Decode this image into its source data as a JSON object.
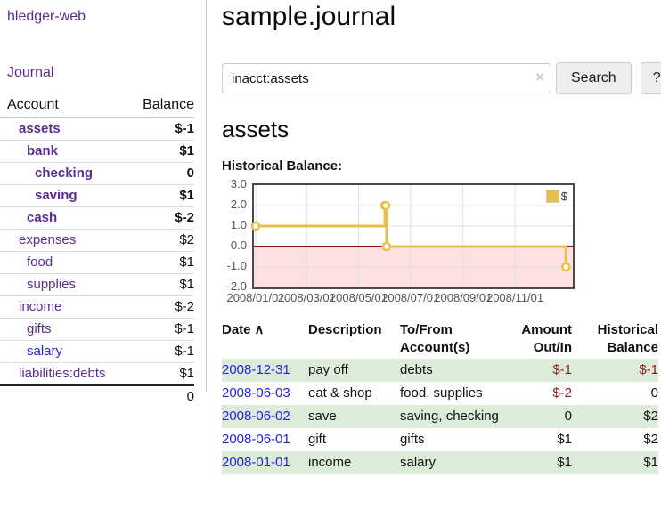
{
  "app": {
    "brand": "hledger-web"
  },
  "sidebar": {
    "journal_link": "Journal",
    "accounts_table": {
      "headers": {
        "account": "Account",
        "balance": "Balance"
      },
      "rows": [
        {
          "name": "assets",
          "depth": 1,
          "balance": "$-1",
          "highlighted": true,
          "balance_tone": "neg-strong",
          "link_color": "purple"
        },
        {
          "name": "bank",
          "depth": 2,
          "balance": "$1",
          "highlighted": true,
          "balance_tone": "normal",
          "link_color": "purple"
        },
        {
          "name": "checking",
          "depth": 3,
          "balance": "0",
          "highlighted": true,
          "balance_tone": "normal",
          "link_color": "purple"
        },
        {
          "name": "saving",
          "depth": 3,
          "balance": "$1",
          "highlighted": true,
          "balance_tone": "normal",
          "link_color": "purple"
        },
        {
          "name": "cash",
          "depth": 2,
          "balance": "$-2",
          "highlighted": true,
          "balance_tone": "neg-strong",
          "link_color": "purple"
        },
        {
          "name": "expenses",
          "depth": 1,
          "balance": "$2",
          "highlighted": false,
          "balance_tone": "normal",
          "link_color": "purple"
        },
        {
          "name": "food",
          "depth": 2,
          "balance": "$1",
          "highlighted": false,
          "balance_tone": "normal",
          "link_color": "purple"
        },
        {
          "name": "supplies",
          "depth": 2,
          "balance": "$1",
          "highlighted": false,
          "balance_tone": "normal",
          "link_color": "purple"
        },
        {
          "name": "income",
          "depth": 1,
          "balance": "$-2",
          "highlighted": false,
          "balance_tone": "neg-soft",
          "link_color": "purple"
        },
        {
          "name": "gifts",
          "depth": 2,
          "balance": "$-1",
          "highlighted": false,
          "balance_tone": "neg-soft",
          "link_color": "purple"
        },
        {
          "name": "salary",
          "depth": 2,
          "balance": "$-1",
          "highlighted": false,
          "balance_tone": "neg-soft",
          "link_color": "blue"
        },
        {
          "name": "liabilities:debts",
          "depth": 1,
          "balance": "$1",
          "highlighted": false,
          "balance_tone": "normal",
          "link_color": "purple"
        }
      ],
      "total": "0"
    }
  },
  "header": {
    "title": "sample.journal"
  },
  "search": {
    "value": "inacct:assets",
    "clear_icon": "×",
    "button_label": "Search",
    "help_label": "?"
  },
  "account_page": {
    "title": "assets",
    "chart_label": "Historical Balance:"
  },
  "chart_data": {
    "type": "line",
    "step": true,
    "title": "Historical Balance:",
    "series": [
      {
        "name": "$",
        "color": "#e6c04a",
        "points": [
          [
            "2008-01-01",
            1
          ],
          [
            "2008-06-01",
            2
          ],
          [
            "2008-06-02",
            2
          ],
          [
            "2008-06-03",
            0
          ],
          [
            "2008-12-31",
            -1
          ]
        ]
      }
    ],
    "x_ticks": [
      "2008/01/01",
      "2008/03/01",
      "2008/05/01",
      "2008/07/01",
      "2008/09/01",
      "2008/11/01"
    ],
    "y_ticks": [
      "3.0",
      "2.0",
      "1.0",
      "0.0",
      "-1.0",
      "-2.0"
    ],
    "ylim": [
      -2,
      3
    ],
    "grid": true,
    "legend": {
      "label": "$",
      "position": "top-right"
    },
    "colors": {
      "negative_region": "#fde1e1",
      "zero_line": "#8b1010",
      "gridline": "#e0e0e0",
      "plot_border": "#4a4a4a"
    }
  },
  "transactions": {
    "headers": [
      "Date",
      "Description",
      "To/From Account(s)",
      "Amount Out/In",
      "Historical Balance"
    ],
    "sort_indicator": "∧",
    "rows": [
      {
        "date": "2008-12-31",
        "description": "pay off",
        "accounts": "debts",
        "amount": "$-1",
        "amount_neg": true,
        "balance": "$-1",
        "balance_neg": true,
        "green": true
      },
      {
        "date": "2008-06-03",
        "description": "eat & shop",
        "accounts": "food, supplies",
        "amount": "$-2",
        "amount_neg": true,
        "balance": "0",
        "balance_neg": false,
        "green": false
      },
      {
        "date": "2008-06-02",
        "description": "save",
        "accounts": "saving, checking",
        "amount": "0",
        "amount_neg": false,
        "balance": "$2",
        "balance_neg": false,
        "green": true
      },
      {
        "date": "2008-06-01",
        "description": "gift",
        "accounts": "gifts",
        "amount": "$1",
        "amount_neg": false,
        "balance": "$2",
        "balance_neg": false,
        "green": false
      },
      {
        "date": "2008-01-01",
        "description": "income",
        "accounts": "salary",
        "amount": "$1",
        "amount_neg": false,
        "balance": "$1",
        "balance_neg": false,
        "green": true
      }
    ]
  }
}
